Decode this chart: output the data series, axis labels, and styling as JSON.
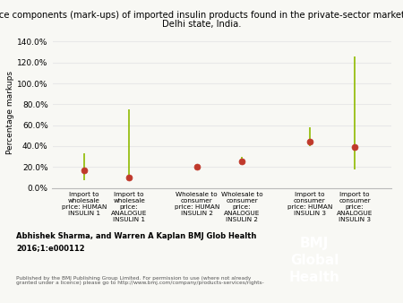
{
  "title_line1": "Price components (mark-ups) of imported insulin products found in the private-sector market in",
  "title_line2": "Delhi state, India.",
  "ylabel": "Percentage markups",
  "xlabels": [
    "Import to\nwholesale\nprice: HUMAN\nINSULIN 1",
    "Import to\nwholesale\nprice:\nANALOGUE\nINSULIN 1",
    "Wholesale to\nconsumer\nprice: HUMAN\nINSULIN 2",
    "Wholesale to\nconsumer\nprice:\nANALOGUE\nINSULIN 2",
    "Import to\nconsumer\nprice: HUMAN\nINSULIN 3",
    "Import to\nconsumer\nprice:\nANALOGUE\nINSULIN 3"
  ],
  "x_positions": [
    1,
    2,
    3.5,
    4.5,
    6,
    7
  ],
  "centers": [
    17.0,
    10.0,
    20.0,
    25.0,
    44.0,
    39.0
  ],
  "lower_errors": [
    10.0,
    2.0,
    1.5,
    2.5,
    4.0,
    21.0
  ],
  "upper_errors": [
    16.0,
    65.0,
    3.0,
    5.0,
    14.0,
    87.0
  ],
  "dot_color": "#c0392b",
  "line_color": "#8fba00",
  "ylim": [
    0,
    145
  ],
  "yticks": [
    0,
    20,
    40,
    60,
    80,
    100,
    120,
    140
  ],
  "ytick_labels": [
    "0.0%",
    "20.0%",
    "40.0%",
    "60.0%",
    "80.0%",
    "100.0%",
    "120.0%",
    "140.0%"
  ],
  "background_color": "#f8f8f4",
  "grid_color": "#e8e8e8",
  "author_line1": "Abhishek Sharma, and Warren A Kaplan BMJ Glob Health",
  "author_line2": "2016;1:e000112",
  "publisher_text": "Published by the BMJ Publishing Group Limited. For permission to use (where not already\ngranted under a licence) please go to http://www.bmj.com/company/products-services/rights-"
}
